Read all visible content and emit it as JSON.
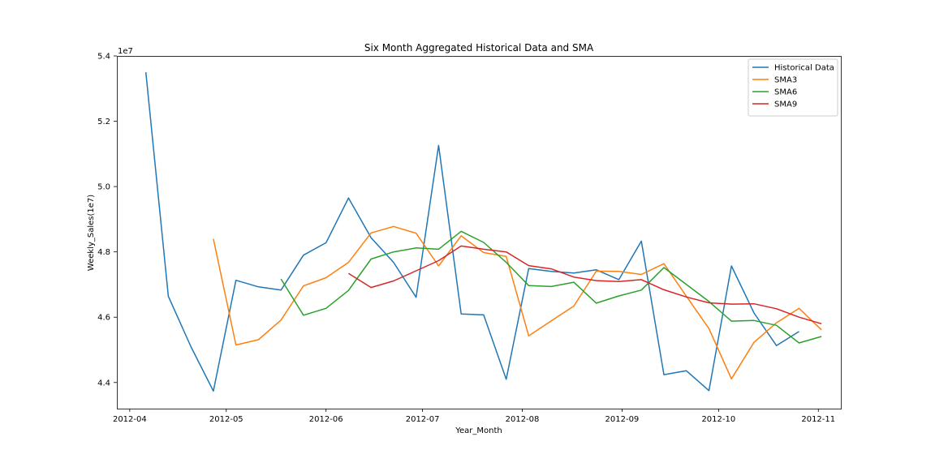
{
  "chart_data": {
    "type": "line",
    "title": "Six Month Aggregated Historical Data and SMA",
    "xlabel": "Year_Month",
    "ylabel": "Weekly_Sales(1e7)",
    "y_offset_label": "1e7",
    "x_ticks": [
      "2012-04",
      "2012-05",
      "2012-06",
      "2012-07",
      "2012-08",
      "2012-09",
      "2012-10",
      "2012-11"
    ],
    "y_ticks": [
      "4.4",
      "4.6",
      "4.8",
      "5.0",
      "5.2",
      "5.4"
    ],
    "ylim": [
      4.32,
      5.4
    ],
    "legend_position": "top-right",
    "grid": false,
    "x": [
      "2012-04-06",
      "2012-04-13",
      "2012-04-20",
      "2012-04-27",
      "2012-05-04",
      "2012-05-11",
      "2012-05-18",
      "2012-05-25",
      "2012-06-01",
      "2012-06-08",
      "2012-06-15",
      "2012-06-22",
      "2012-06-29",
      "2012-07-06",
      "2012-07-13",
      "2012-07-20",
      "2012-07-27",
      "2012-08-03",
      "2012-08-10",
      "2012-08-17",
      "2012-08-24",
      "2012-08-31",
      "2012-09-07",
      "2012-09-14",
      "2012-09-21",
      "2012-09-28",
      "2012-10-05",
      "2012-10-12",
      "2012-10-19",
      "2012-10-26",
      "2012-11-02"
    ],
    "series": [
      {
        "name": "Historical Data",
        "color": "#1f77b4",
        "values": [
          5.35,
          4.664,
          4.51,
          4.374,
          4.713,
          4.693,
          4.683,
          4.79,
          4.828,
          4.965,
          4.843,
          4.768,
          4.661,
          5.126,
          4.61,
          4.607,
          4.41,
          4.749,
          4.74,
          4.735,
          4.745,
          4.715,
          4.833,
          4.424,
          4.436,
          4.375,
          4.757,
          4.613,
          4.513,
          4.556,
          null
        ]
      },
      {
        "name": "SMA3",
        "color": "#ff7f0e",
        "values": [
          null,
          null,
          null,
          4.84,
          4.515,
          4.531,
          4.591,
          4.696,
          4.721,
          4.768,
          4.858,
          4.878,
          4.857,
          4.757,
          4.849,
          4.798,
          4.786,
          4.543,
          4.589,
          4.634,
          4.741,
          4.74,
          4.731,
          4.764,
          4.664,
          4.565,
          4.411,
          4.523,
          4.583,
          4.627,
          4.561
        ]
      },
      {
        "name": "SMA6",
        "color": "#2ca02c",
        "values": [
          null,
          null,
          null,
          null,
          null,
          null,
          4.717,
          4.606,
          4.627,
          4.682,
          4.778,
          4.8,
          4.812,
          4.808,
          4.863,
          4.829,
          4.768,
          4.697,
          4.694,
          4.707,
          4.643,
          4.665,
          4.683,
          4.752,
          4.7,
          4.648,
          4.588,
          4.59,
          4.575,
          4.521,
          4.541
        ]
      },
      {
        "name": "SMA9",
        "color": "#d62728",
        "values": [
          null,
          null,
          null,
          null,
          null,
          null,
          null,
          null,
          null,
          4.734,
          4.691,
          4.711,
          4.742,
          4.773,
          4.818,
          4.808,
          4.8,
          4.758,
          4.748,
          4.723,
          4.712,
          4.709,
          4.715,
          4.684,
          4.662,
          4.644,
          4.64,
          4.641,
          4.626,
          4.6,
          4.58
        ]
      }
    ]
  }
}
